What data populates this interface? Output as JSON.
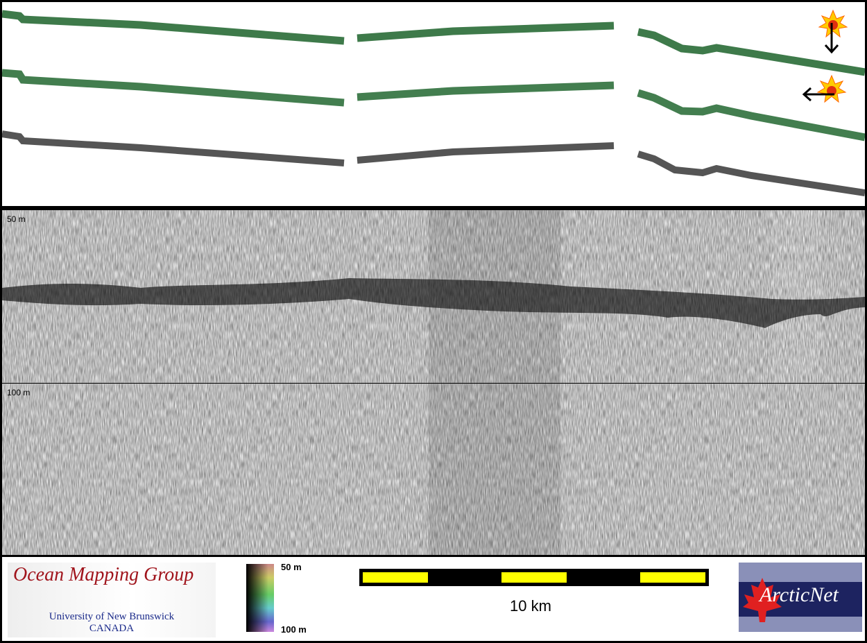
{
  "profile": {
    "depth_labels": [
      "50 m",
      "100 m"
    ]
  },
  "legend": {
    "logo_left": {
      "title": "Ocean Mapping Group",
      "line1": "University of New Brunswick",
      "line2": "CANADA"
    },
    "colorbar": {
      "top_label": "50 m",
      "bottom_label": "100 m"
    },
    "scale_bar": {
      "label": "10 km",
      "colors": [
        "#000000",
        "#ffff00"
      ]
    },
    "logo_right": {
      "name": "ArcticNet"
    }
  },
  "colors": {
    "track_green": "#3e7a4a",
    "track_gray": "#555555",
    "sun": "#ffcc00"
  },
  "icons": [
    "sun-arrow-down-icon",
    "sun-arrow-left-icon"
  ]
}
